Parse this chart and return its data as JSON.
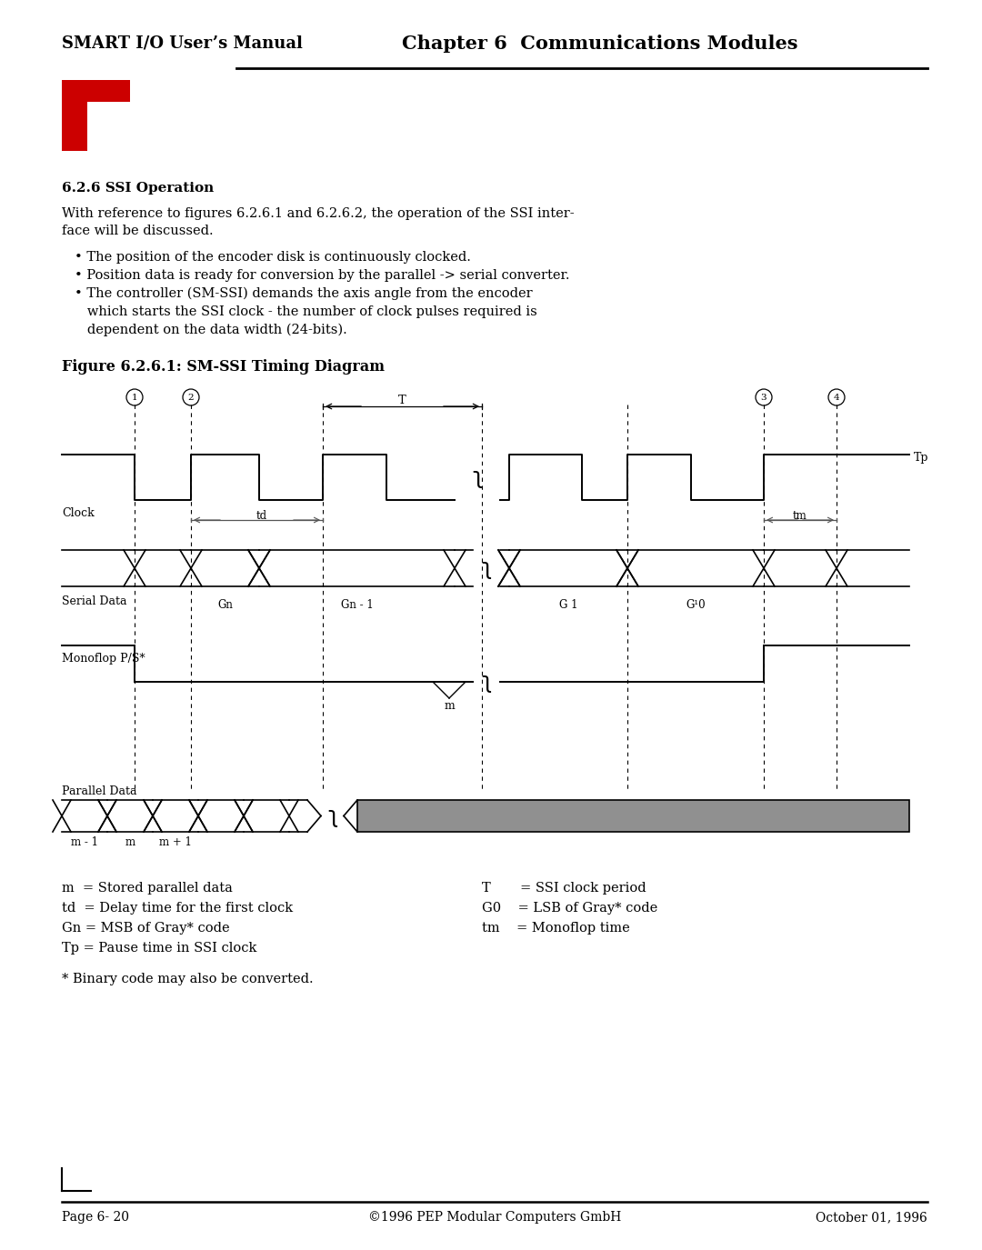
{
  "page_title_left": "SMART I/O User’s Manual",
  "page_title_right": "Chapter 6  Communications Modules",
  "section_title": "6.2.6 SSI Operation",
  "body_line1": "With reference to figures 6.2.6.1 and 6.2.6.2, the operation of the SSI inter-",
  "body_line2": "face will be discussed.",
  "bullet1": "• The position of the encoder disk is continuously clocked.",
  "bullet2": "• Position data is ready for conversion by the parallel -> serial converter.",
  "bullet3a": "• The controller (SM-SSI) demands the axis angle from the encoder",
  "bullet3b": "   which starts the SSI clock - the number of clock pulses required is",
  "bullet3c": "   dependent on the data width (24-bits).",
  "figure_title": "Figure 6.2.6.1: SM-SSI Timing Diagram",
  "legend_left": [
    "m  = Stored parallel data",
    "td  = Delay time for the first clock",
    "Gn = MSB of Gray* code",
    "Tp = Pause time in SSI clock"
  ],
  "legend_right": [
    "T       = SSI clock period",
    "G0    = LSB of Gray* code",
    "tm    = Monoflop time"
  ],
  "footnote": "* Binary code may also be converted.",
  "footer_left": "Page 6- 20",
  "footer_center": "©1996 PEP Modular Computers GmbH",
  "footer_right": "October 01, 1996",
  "bg_color": "#ffffff",
  "text_color": "#000000",
  "red_color": "#cc0000",
  "gray_color": "#808080"
}
